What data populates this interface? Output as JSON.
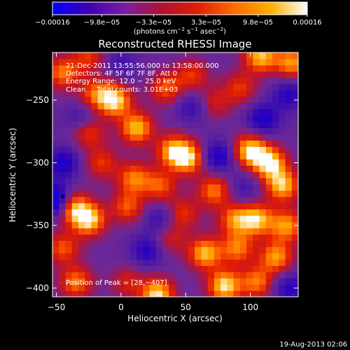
{
  "chart_data": {
    "type": "heatmap",
    "title": "Reconstructed RHESSI Image",
    "xlabel": "Heliocentric X (arcsec)",
    "ylabel": "Heliocentric Y (arcsec)",
    "xlim": [
      -53,
      137
    ],
    "ylim": [
      -407,
      -212
    ],
    "xticks": [
      -50,
      0,
      50,
      100
    ],
    "xtick_labels": [
      "−50",
      "0",
      "50",
      "100"
    ],
    "yticks": [
      -250,
      -300,
      -350,
      -400
    ],
    "ytick_labels": [
      "−250",
      "−300",
      "−350",
      "−400"
    ],
    "colorbar": {
      "tick_labels": [
        "−0.00016",
        "−9.8e−05",
        "−3.3e−05",
        "3.3e−05",
        "9.8e−05",
        "0.00016"
      ],
      "tick_values": [
        -0.00016,
        -9.8e-05,
        -3.3e-05,
        3.3e-05,
        9.8e-05,
        0.00016
      ],
      "range": [
        -0.00016,
        0.00016
      ],
      "units_prefix": "(photons cm",
      "units_exp1": "−2",
      "units_mid": " s",
      "units_exp2": "−1",
      "units_mid2": " asec",
      "units_exp3": "−2",
      "units_suffix": ")",
      "colors": [
        "#0000ff",
        "#4000b0",
        "#7a20a0",
        "#b01030",
        "#e02000",
        "#ff6a00",
        "#ffb000",
        "#ffffff"
      ]
    },
    "annotations": {
      "time_range": "21-Dec-2011 13:55:56.000 to 13:58:00.000",
      "detectors": "Detectors: 4F 5F 6F 7F 8F, Att 0",
      "energy": "Energy Range: 12.0 − 25.0 keV",
      "clean": "Clean     Total counts: 3.01E+03",
      "peak": "Position of Peak = [28,−407]"
    },
    "peak_position": [
      28,
      -407
    ],
    "grid": false,
    "blobs": [
      {
        "x": -45,
        "y": -228,
        "v": 0.7
      },
      {
        "x": -25,
        "y": -215,
        "v": 0.5
      },
      {
        "x": -20,
        "y": -245,
        "v": 0.6
      },
      {
        "x": -5,
        "y": -250,
        "v": 1.0
      },
      {
        "x": 12,
        "y": -272,
        "v": 0.9
      },
      {
        "x": 35,
        "y": -240,
        "v": 0.6
      },
      {
        "x": 55,
        "y": -230,
        "v": 0.5
      },
      {
        "x": 72,
        "y": -252,
        "v": 0.4
      },
      {
        "x": 92,
        "y": -240,
        "v": 0.5
      },
      {
        "x": 108,
        "y": -215,
        "v": 0.9
      },
      {
        "x": 132,
        "y": -220,
        "v": 0.8
      },
      {
        "x": -25,
        "y": -275,
        "v": 0.6
      },
      {
        "x": 40,
        "y": -290,
        "v": 0.8
      },
      {
        "x": 52,
        "y": -296,
        "v": 0.9
      },
      {
        "x": 100,
        "y": -290,
        "v": 1.0
      },
      {
        "x": 115,
        "y": -300,
        "v": 1.0
      },
      {
        "x": 125,
        "y": -318,
        "v": 0.9
      },
      {
        "x": -15,
        "y": -300,
        "v": 0.5
      },
      {
        "x": 10,
        "y": -312,
        "v": 0.7
      },
      {
        "x": 30,
        "y": -318,
        "v": 0.6
      },
      {
        "x": 72,
        "y": -322,
        "v": 0.7
      },
      {
        "x": -38,
        "y": -335,
        "v": 0.9
      },
      {
        "x": -25,
        "y": -345,
        "v": 1.0
      },
      {
        "x": 5,
        "y": -335,
        "v": 0.6
      },
      {
        "x": 48,
        "y": -340,
        "v": 0.5
      },
      {
        "x": 88,
        "y": -345,
        "v": 0.7
      },
      {
        "x": 105,
        "y": -345,
        "v": 0.9
      },
      {
        "x": 128,
        "y": -350,
        "v": 0.8
      },
      {
        "x": -45,
        "y": -368,
        "v": 0.6
      },
      {
        "x": 38,
        "y": -360,
        "v": 0.4
      },
      {
        "x": 65,
        "y": -372,
        "v": 0.9
      },
      {
        "x": 90,
        "y": -368,
        "v": 0.7
      },
      {
        "x": 120,
        "y": -375,
        "v": 0.8
      },
      {
        "x": -35,
        "y": -395,
        "v": 0.7
      },
      {
        "x": 5,
        "y": -395,
        "v": 0.4
      },
      {
        "x": 28,
        "y": -405,
        "v": 1.0
      },
      {
        "x": 80,
        "y": -398,
        "v": 1.0
      },
      {
        "x": 105,
        "y": -395,
        "v": 0.7
      },
      {
        "x": -50,
        "y": -330,
        "v": -1.0
      },
      {
        "x": -45,
        "y": -300,
        "v": -0.6
      },
      {
        "x": 20,
        "y": -370,
        "v": -0.5
      },
      {
        "x": 55,
        "y": -255,
        "v": -0.4
      },
      {
        "x": 75,
        "y": -295,
        "v": -0.6
      },
      {
        "x": 110,
        "y": -265,
        "v": -0.6
      },
      {
        "x": 130,
        "y": -245,
        "v": -0.5
      },
      {
        "x": 30,
        "y": -345,
        "v": -0.4
      },
      {
        "x": 0,
        "y": -220,
        "v": -0.3
      },
      {
        "x": 95,
        "y": -320,
        "v": -0.3
      },
      {
        "x": 130,
        "y": -400,
        "v": -0.5
      },
      {
        "x": -30,
        "y": -265,
        "v": -0.4
      }
    ]
  },
  "footer": {
    "date": "19-Aug-2013 02:06"
  }
}
